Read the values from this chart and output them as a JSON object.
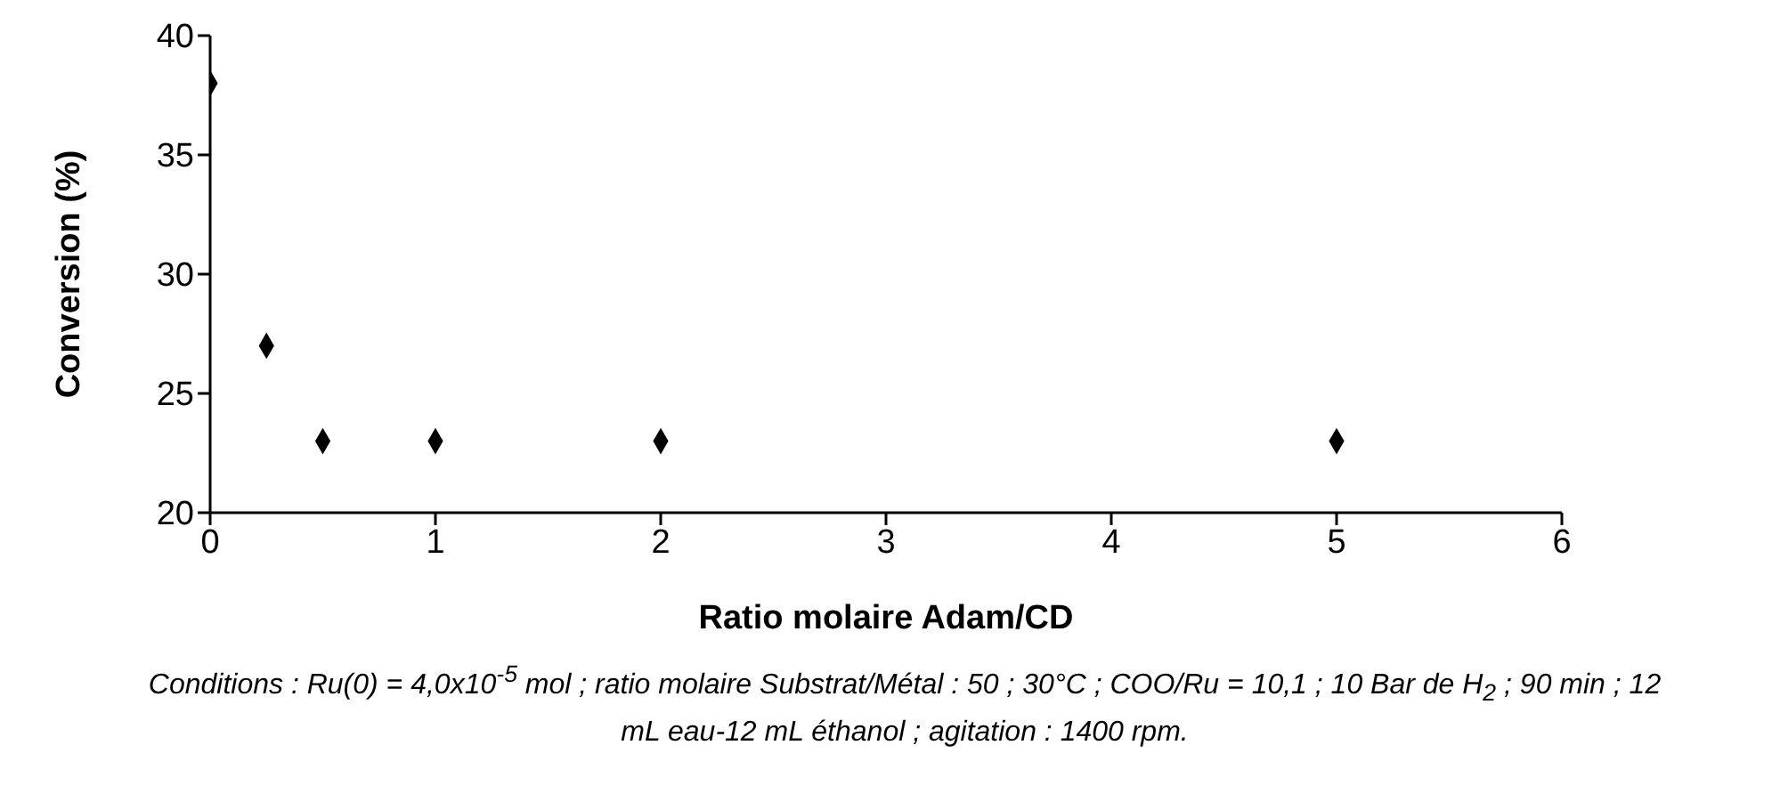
{
  "chart_data": {
    "type": "scatter",
    "x": [
      0,
      0.25,
      0.5,
      1,
      2,
      5
    ],
    "values": [
      38,
      27,
      23,
      23,
      23,
      23
    ],
    "color": "#000000",
    "marker": "diamond",
    "xlim": [
      0,
      6
    ],
    "xticks": [
      0,
      1,
      2,
      3,
      4,
      5,
      6
    ],
    "ylim": [
      20,
      40
    ],
    "yticks": [
      20,
      25,
      30,
      35,
      40
    ],
    "grid": false,
    "legend": false,
    "xlabel": "Ratio molaire Adam/CD",
    "ylabel": "Conversion (%)",
    "annotations": [
      "Conditions : Ru(0) = 4,0x10$^{-5}$ mol ; ratio molaire Substrat/Métal : 50 ; 30°C ; COO/Ru = 10,1 ; 10 Bar de H$_{2}$ ; 90 min ; 12 mL eau-12 mL éthanol ; agitation : 1400 rpm."
    ]
  }
}
